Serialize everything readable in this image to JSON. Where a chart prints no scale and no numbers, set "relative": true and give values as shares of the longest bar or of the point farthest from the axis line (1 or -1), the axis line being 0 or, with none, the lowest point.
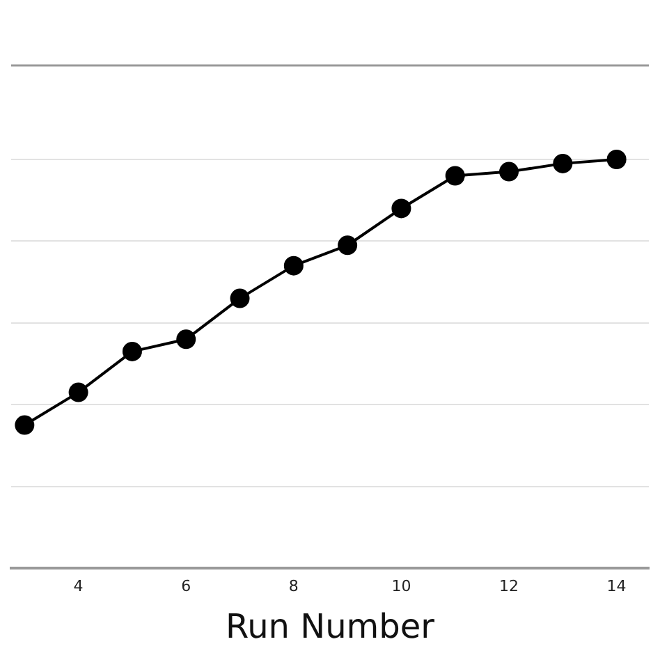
{
  "chart_data": {
    "type": "line",
    "xlabel": "Run Number",
    "relative": true,
    "x": [
      3,
      4,
      5,
      6,
      7,
      8,
      9,
      10,
      11,
      12,
      13,
      14
    ],
    "series": [
      {
        "color": "#000000",
        "values": [
          0.35,
          0.43,
          0.53,
          0.56,
          0.66,
          0.74,
          0.79,
          0.88,
          0.96,
          0.97,
          0.99,
          1
        ]
      }
    ],
    "xlim": [
      2.75,
      14.6
    ],
    "xticks": [
      4,
      6,
      8,
      10,
      12,
      14
    ],
    "grid": "y",
    "tick_labels": "x",
    "marker": "circle",
    "line_style": "solid"
  }
}
